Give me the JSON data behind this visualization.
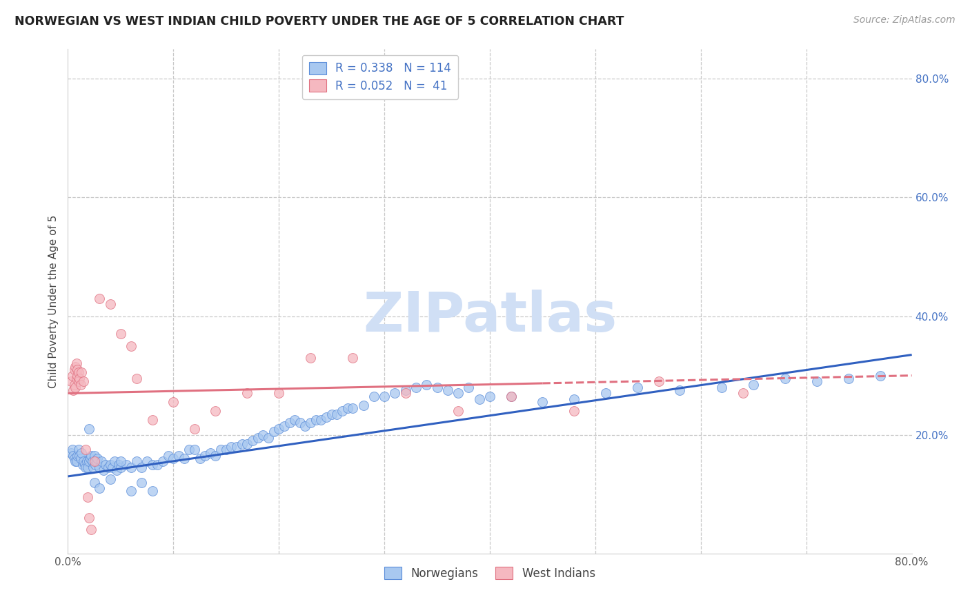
{
  "title": "NORWEGIAN VS WEST INDIAN CHILD POVERTY UNDER THE AGE OF 5 CORRELATION CHART",
  "source": "Source: ZipAtlas.com",
  "ylabel": "Child Poverty Under the Age of 5",
  "xlim": [
    0,
    0.8
  ],
  "ylim": [
    0,
    0.85
  ],
  "ytick_vals": [
    0.2,
    0.4,
    0.6,
    0.8
  ],
  "xtick_vals": [
    0.0,
    0.1,
    0.2,
    0.3,
    0.4,
    0.5,
    0.6,
    0.7,
    0.8
  ],
  "color_norwegian_fill": "#a8c8f0",
  "color_norwegian_edge": "#5b8dd9",
  "color_west_indian_fill": "#f5b8c0",
  "color_west_indian_edge": "#e07080",
  "color_line_norwegian": "#3060c0",
  "color_line_west_indian": "#e07080",
  "watermark_color": "#d0dff5",
  "background_color": "#ffffff",
  "grid_color": "#c8c8c8",
  "norwegians_x": [
    0.003,
    0.004,
    0.005,
    0.006,
    0.007,
    0.008,
    0.009,
    0.01,
    0.011,
    0.012,
    0.013,
    0.014,
    0.015,
    0.016,
    0.017,
    0.018,
    0.019,
    0.02,
    0.021,
    0.022,
    0.023,
    0.024,
    0.025,
    0.026,
    0.027,
    0.028,
    0.03,
    0.032,
    0.034,
    0.036,
    0.038,
    0.04,
    0.042,
    0.044,
    0.046,
    0.048,
    0.05,
    0.055,
    0.06,
    0.065,
    0.07,
    0.075,
    0.08,
    0.085,
    0.09,
    0.095,
    0.1,
    0.105,
    0.11,
    0.115,
    0.12,
    0.125,
    0.13,
    0.135,
    0.14,
    0.145,
    0.15,
    0.155,
    0.16,
    0.165,
    0.17,
    0.175,
    0.18,
    0.185,
    0.19,
    0.195,
    0.2,
    0.205,
    0.21,
    0.215,
    0.22,
    0.225,
    0.23,
    0.235,
    0.24,
    0.245,
    0.25,
    0.255,
    0.26,
    0.265,
    0.27,
    0.28,
    0.29,
    0.3,
    0.31,
    0.32,
    0.33,
    0.34,
    0.35,
    0.36,
    0.37,
    0.38,
    0.39,
    0.4,
    0.42,
    0.45,
    0.48,
    0.51,
    0.54,
    0.58,
    0.62,
    0.65,
    0.68,
    0.71,
    0.74,
    0.77,
    0.02,
    0.025,
    0.03,
    0.04,
    0.05,
    0.06,
    0.07,
    0.08
  ],
  "norwegians_y": [
    0.17,
    0.175,
    0.165,
    0.16,
    0.155,
    0.155,
    0.165,
    0.175,
    0.165,
    0.16,
    0.17,
    0.15,
    0.155,
    0.15,
    0.145,
    0.155,
    0.145,
    0.155,
    0.16,
    0.165,
    0.155,
    0.145,
    0.165,
    0.15,
    0.155,
    0.16,
    0.145,
    0.155,
    0.14,
    0.15,
    0.145,
    0.15,
    0.145,
    0.155,
    0.14,
    0.15,
    0.145,
    0.15,
    0.145,
    0.155,
    0.145,
    0.155,
    0.15,
    0.15,
    0.155,
    0.165,
    0.16,
    0.165,
    0.16,
    0.175,
    0.175,
    0.16,
    0.165,
    0.17,
    0.165,
    0.175,
    0.175,
    0.18,
    0.18,
    0.185,
    0.185,
    0.19,
    0.195,
    0.2,
    0.195,
    0.205,
    0.21,
    0.215,
    0.22,
    0.225,
    0.22,
    0.215,
    0.22,
    0.225,
    0.225,
    0.23,
    0.235,
    0.235,
    0.24,
    0.245,
    0.245,
    0.25,
    0.265,
    0.265,
    0.27,
    0.275,
    0.28,
    0.285,
    0.28,
    0.275,
    0.27,
    0.28,
    0.26,
    0.265,
    0.265,
    0.255,
    0.26,
    0.27,
    0.28,
    0.275,
    0.28,
    0.285,
    0.295,
    0.29,
    0.295,
    0.3,
    0.21,
    0.12,
    0.11,
    0.125,
    0.155,
    0.105,
    0.12,
    0.105
  ],
  "west_indians_x": [
    0.003,
    0.004,
    0.005,
    0.006,
    0.006,
    0.007,
    0.007,
    0.008,
    0.008,
    0.009,
    0.009,
    0.01,
    0.01,
    0.011,
    0.012,
    0.013,
    0.015,
    0.017,
    0.019,
    0.022,
    0.025,
    0.03,
    0.04,
    0.05,
    0.06,
    0.065,
    0.08,
    0.1,
    0.12,
    0.14,
    0.17,
    0.2,
    0.23,
    0.27,
    0.32,
    0.37,
    0.42,
    0.48,
    0.56,
    0.64,
    0.02
  ],
  "west_indians_y": [
    0.29,
    0.3,
    0.275,
    0.285,
    0.31,
    0.28,
    0.315,
    0.295,
    0.32,
    0.3,
    0.31,
    0.29,
    0.305,
    0.295,
    0.285,
    0.305,
    0.29,
    0.175,
    0.095,
    0.04,
    0.155,
    0.43,
    0.42,
    0.37,
    0.35,
    0.295,
    0.225,
    0.255,
    0.21,
    0.24,
    0.27,
    0.27,
    0.33,
    0.33,
    0.27,
    0.24,
    0.265,
    0.24,
    0.29,
    0.27,
    0.06
  ],
  "nor_line_x0": 0.0,
  "nor_line_x1": 0.8,
  "nor_line_y0": 0.13,
  "nor_line_y1": 0.335,
  "wi_line_x0": 0.0,
  "wi_line_x1": 0.8,
  "wi_line_y0": 0.27,
  "wi_line_y1": 0.3
}
